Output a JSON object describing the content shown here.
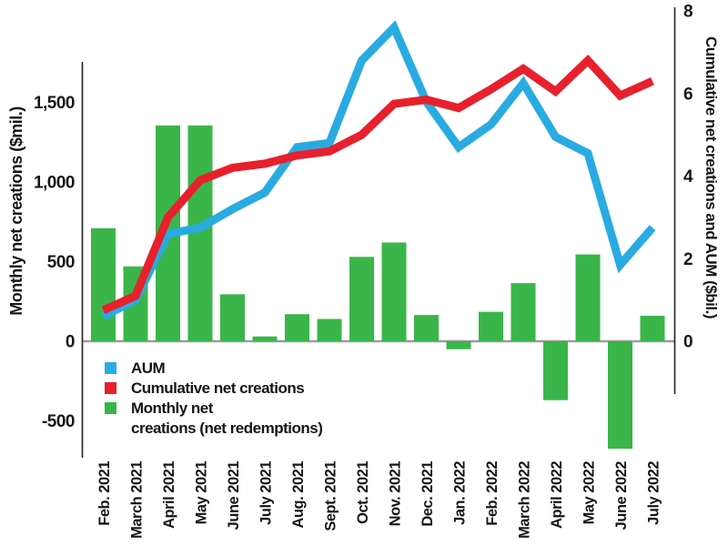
{
  "chart_data": {
    "type": "combo-bar-line",
    "title": "",
    "grid": false,
    "background": "#ffffff",
    "categories": [
      "Feb. 2021",
      "March 2021",
      "April 2021",
      "May 2021",
      "June 2021",
      "July 2021",
      "Aug. 2021",
      "Sept. 2021",
      "Oct. 2021",
      "Nov. 2021",
      "Dec. 2021",
      "Jan. 2022",
      "Feb. 2022",
      "March 2022",
      "April 2022",
      "May 2022",
      "June 2022",
      "July 2022"
    ],
    "series": [
      {
        "name": "Monthly net creations (net redemptions)",
        "type": "bar",
        "axis": "left",
        "unit": "$mil.",
        "color": "#3ab54a",
        "values": [
          710,
          470,
          1355,
          1355,
          295,
          30,
          170,
          140,
          530,
          620,
          165,
          -50,
          185,
          365,
          -370,
          545,
          -675,
          160
        ]
      },
      {
        "name": "AUM",
        "type": "line",
        "axis": "right",
        "unit": "$bil.",
        "color": "#29abe2",
        "values": [
          0.6,
          1.0,
          2.6,
          2.75,
          3.2,
          3.6,
          4.7,
          4.8,
          6.8,
          7.6,
          5.8,
          4.7,
          5.25,
          6.25,
          4.95,
          4.55,
          1.85,
          2.75
        ]
      },
      {
        "name": "Cumulative net creations",
        "type": "line",
        "axis": "right",
        "unit": "$bil.",
        "color": "#e8202d",
        "values": [
          0.75,
          1.1,
          3.0,
          3.9,
          4.2,
          4.3,
          4.5,
          4.6,
          5.0,
          5.75,
          5.85,
          5.65,
          6.1,
          6.6,
          6.05,
          6.8,
          5.95,
          6.3
        ]
      }
    ],
    "left_axis": {
      "title": "Monthly net creations ($mil.)",
      "range": [
        -750,
        1750
      ],
      "ticks": [
        {
          "label": "1,500",
          "value": 1500
        },
        {
          "label": "1,000",
          "value": 1000
        },
        {
          "label": "500",
          "value": 500
        },
        {
          "label": "0",
          "value": 0
        },
        {
          "label": "-500",
          "value": -500
        }
      ]
    },
    "right_axis": {
      "title": "Cumulative net creations and AUM ($bil.)",
      "range": [
        0,
        8
      ],
      "ticks": [
        {
          "label": "8",
          "value": 8
        },
        {
          "label": "6",
          "value": 6
        },
        {
          "label": "4",
          "value": 4
        },
        {
          "label": "2",
          "value": 2
        },
        {
          "label": "0",
          "value": 0
        }
      ]
    },
    "legend": {
      "position": "inside-bottom-left",
      "items": [
        {
          "label_lines": [
            "AUM"
          ],
          "color": "#29abe2"
        },
        {
          "label_lines": [
            "Cumulative net creations"
          ],
          "color": "#e8202d"
        },
        {
          "label_lines": [
            "Monthly net",
            "creations (net redemptions)"
          ],
          "color": "#3ab54a"
        }
      ]
    },
    "style": {
      "zero_line_color": "#9c9c9c",
      "axis_line_color": "#231f20",
      "line_stroke_width": 9
    }
  }
}
